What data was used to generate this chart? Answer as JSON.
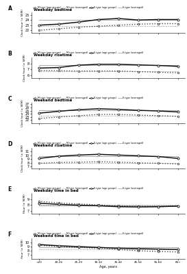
{
  "age_labels": [
    "<20",
    "20-24",
    "25-29",
    "30-34",
    "35-44",
    "45-54",
    "55-64",
    "65+"
  ],
  "age_x": [
    0,
    1,
    2,
    3,
    4,
    5,
    6,
    7
  ],
  "panels": [
    {
      "label": "A",
      "title": "Weekday bedtime",
      "ylabel": "Clock hour (± SEM)",
      "ylim": [
        21.5,
        25.5
      ],
      "yticks": [
        22,
        23,
        24,
        25
      ],
      "M_age": [
        22.0,
        22.3,
        22.6,
        22.8,
        23.0,
        23.2,
        23.3,
        23.3
      ],
      "M_avg": [
        22.85,
        22.85,
        22.85,
        22.85,
        22.85,
        22.85,
        22.85,
        22.85
      ],
      "E_age": [
        23.0,
        23.2,
        23.6,
        24.1,
        24.3,
        24.0,
        24.1,
        24.1
      ],
      "E_avg": [
        24.05,
        24.05,
        24.05,
        24.05,
        24.05,
        24.05,
        24.05,
        24.05
      ]
    },
    {
      "label": "B",
      "title": "Weekday risetime",
      "ylabel": "Clock hour (± SEM)",
      "ylim": [
        5.5,
        9.0
      ],
      "yticks": [
        6,
        7,
        8
      ],
      "M_age": [
        6.8,
        6.75,
        6.7,
        6.7,
        6.7,
        6.6,
        6.5,
        6.4
      ],
      "M_avg": [
        6.65,
        6.65,
        6.65,
        6.65,
        6.65,
        6.65,
        6.65,
        6.65
      ],
      "E_age": [
        7.2,
        7.3,
        7.7,
        7.85,
        7.85,
        7.75,
        7.65,
        7.5
      ],
      "E_avg": [
        7.7,
        7.7,
        7.7,
        7.7,
        7.7,
        7.7,
        7.7,
        7.7
      ]
    },
    {
      "label": "C",
      "title": "Weekend bedtime",
      "ylabel": "Clock hour (± SEM)",
      "ylim": [
        21.0,
        27.5
      ],
      "yticks": [
        22,
        23,
        24,
        25,
        26,
        27
      ],
      "M_age": [
        22.5,
        23.0,
        23.4,
        23.8,
        23.8,
        23.6,
        23.4,
        23.2
      ],
      "M_avg": [
        23.4,
        23.4,
        23.4,
        23.4,
        23.4,
        23.4,
        23.4,
        23.4
      ],
      "E_age": [
        24.2,
        24.8,
        25.3,
        25.6,
        25.4,
        25.1,
        24.9,
        24.6
      ],
      "E_avg": [
        25.1,
        25.1,
        25.1,
        25.1,
        25.1,
        25.1,
        25.1,
        25.1
      ]
    },
    {
      "label": "D",
      "title": "Weekend risetime",
      "ylabel": "Clock hour (± SEM)",
      "ylim": [
        6.5,
        12.0
      ],
      "yticks": [
        7,
        8,
        9,
        10,
        11
      ],
      "M_age": [
        7.9,
        8.1,
        8.2,
        8.3,
        8.2,
        8.0,
        7.9,
        7.7
      ],
      "M_avg": [
        8.05,
        8.05,
        8.05,
        8.05,
        8.05,
        8.05,
        8.05,
        8.05
      ],
      "E_age": [
        9.2,
        9.8,
        10.1,
        10.3,
        10.1,
        9.9,
        9.7,
        9.2
      ],
      "E_avg": [
        9.8,
        9.8,
        9.8,
        9.8,
        9.8,
        9.8,
        9.8,
        9.8
      ]
    },
    {
      "label": "E",
      "title": "Weekday time in bed",
      "ylabel": "Hour (± SEM)",
      "ylim": [
        6.5,
        10.0
      ],
      "yticks": [
        7,
        8,
        9
      ],
      "M_age": [
        8.6,
        8.35,
        8.15,
        8.0,
        7.85,
        7.75,
        7.7,
        7.8
      ],
      "M_avg": [
        8.05,
        8.05,
        8.05,
        8.05,
        8.05,
        8.05,
        8.05,
        8.05
      ],
      "E_age": [
        8.3,
        8.1,
        7.95,
        7.85,
        7.7,
        7.65,
        7.7,
        7.8
      ],
      "E_avg": [
        7.85,
        7.85,
        7.85,
        7.85,
        7.85,
        7.85,
        7.85,
        7.85
      ]
    },
    {
      "label": "F",
      "title": "Weekend time in bed",
      "ylabel": "Hour (± SEM)",
      "ylim": [
        6.0,
        11.0
      ],
      "yticks": [
        7,
        8,
        9,
        10
      ],
      "M_age": [
        9.3,
        9.0,
        8.8,
        8.6,
        8.3,
        8.0,
        7.8,
        7.7
      ],
      "M_avg": [
        8.4,
        8.4,
        8.4,
        8.4,
        8.4,
        8.4,
        8.4,
        8.4
      ],
      "E_age": [
        9.5,
        9.2,
        9.0,
        8.8,
        8.6,
        8.5,
        8.4,
        8.3
      ],
      "E_avg": [
        8.8,
        8.8,
        8.8,
        8.8,
        8.8,
        8.8,
        8.8,
        8.8
      ]
    }
  ],
  "legend": {
    "M_age_label": "M-type (age groups)",
    "M_avg_label": "M-type (averaged)",
    "E_age_label": "E-type (age groups)",
    "E_avg_label": "E-type (averaged)"
  },
  "colors": {
    "M_age": "#444444",
    "M_avg": "#888888",
    "E_age": "#111111",
    "E_avg": "#aaaaaa"
  }
}
